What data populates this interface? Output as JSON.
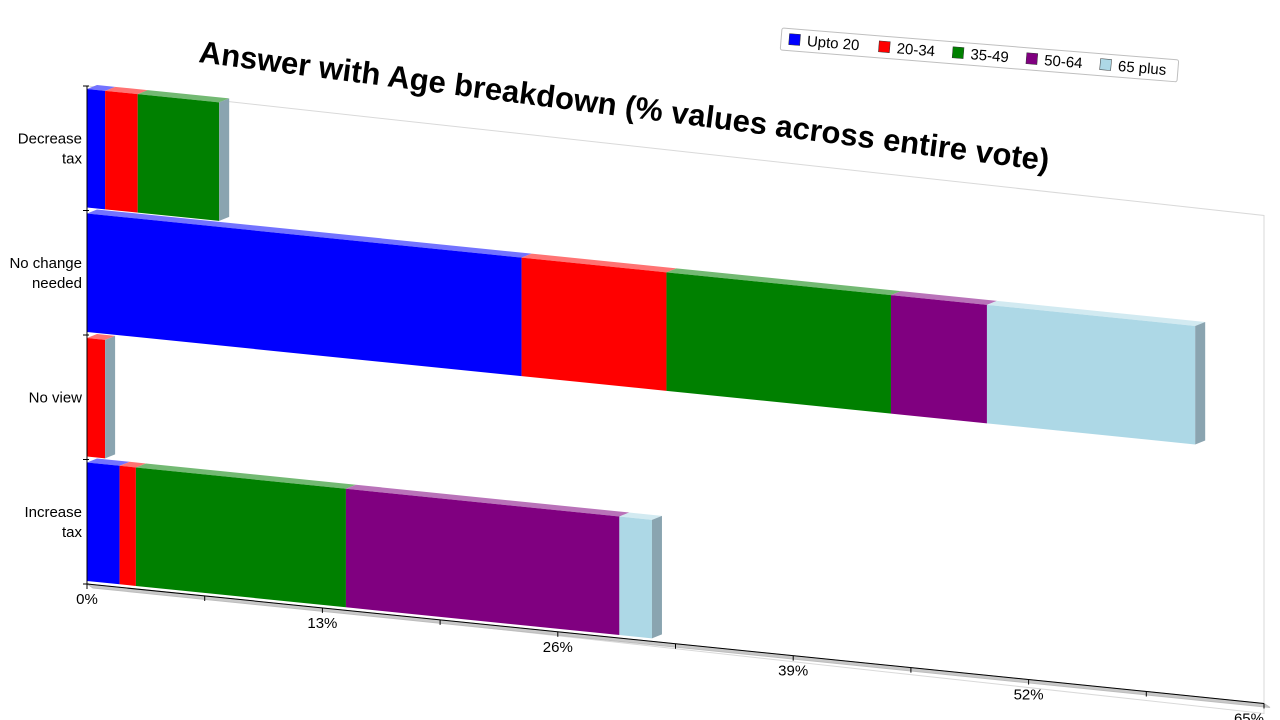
{
  "chart_data": {
    "type": "bar",
    "orientation": "horizontal",
    "stacked": true,
    "three_d": true,
    "title": "Answer with Age breakdown (% values across entire vote)",
    "categories": [
      "Decrease tax",
      "No change needed",
      "No view",
      "Increase tax"
    ],
    "category_label_lines": [
      [
        "Decrease",
        "tax"
      ],
      [
        "No change",
        "needed"
      ],
      [
        "No view"
      ],
      [
        "Increase",
        "tax"
      ]
    ],
    "series": [
      {
        "name": "Upto 20",
        "color": "#0000ff",
        "values": [
          1.0,
          24.0,
          0.0,
          1.8
        ]
      },
      {
        "name": "20-34",
        "color": "#ff0000",
        "values": [
          1.8,
          8.0,
          1.0,
          0.9
        ]
      },
      {
        "name": "35-49",
        "color": "#008000",
        "values": [
          4.5,
          12.4,
          0.0,
          11.6
        ]
      },
      {
        "name": "50-64",
        "color": "#800080",
        "values": [
          0.0,
          5.3,
          0.0,
          15.1
        ]
      },
      {
        "name": "65 plus",
        "color": "#add8e6",
        "values": [
          0.0,
          11.5,
          0.0,
          1.8
        ]
      }
    ],
    "x_ticks": [
      "0%",
      "13%",
      "26%",
      "39%",
      "52%",
      "65%"
    ],
    "x_tick_values": [
      0,
      13,
      26,
      39,
      52,
      65
    ],
    "xlim": [
      0,
      65
    ],
    "legend_position": "top-right",
    "grid": false
  }
}
